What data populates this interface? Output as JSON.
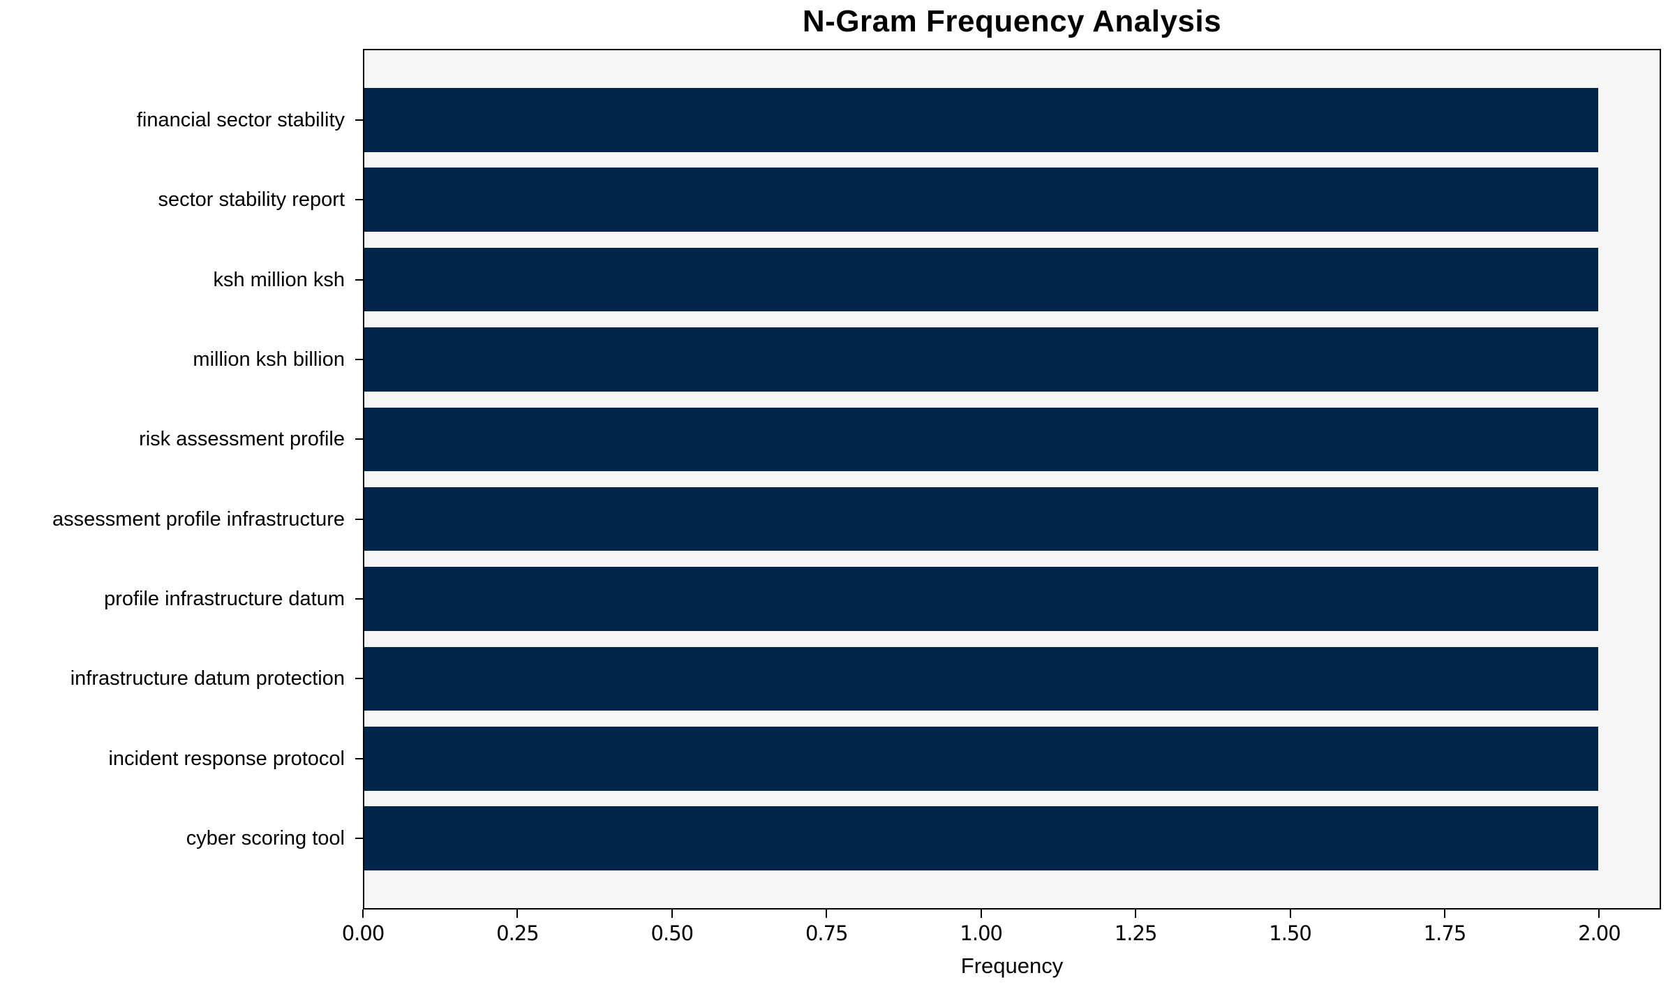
{
  "chart_data": {
    "type": "bar",
    "orientation": "horizontal",
    "title": "N-Gram Frequency Analysis",
    "categories": [
      "financial sector stability",
      "sector stability report",
      "ksh million ksh",
      "million ksh billion",
      "risk assessment profile",
      "assessment profile infrastructure",
      "profile infrastructure datum",
      "infrastructure datum protection",
      "incident response protocol",
      "cyber scoring tool"
    ],
    "values": [
      2,
      2,
      2,
      2,
      2,
      2,
      2,
      2,
      2,
      2
    ],
    "xlabel": "Frequency",
    "ylabel": "",
    "xlim": [
      0,
      2.1
    ],
    "xticks": [
      {
        "value": 0.0,
        "label": "0.00"
      },
      {
        "value": 0.25,
        "label": "0.25"
      },
      {
        "value": 0.5,
        "label": "0.50"
      },
      {
        "value": 0.75,
        "label": "0.75"
      },
      {
        "value": 1.0,
        "label": "1.00"
      },
      {
        "value": 1.25,
        "label": "1.25"
      },
      {
        "value": 1.5,
        "label": "1.50"
      },
      {
        "value": 1.75,
        "label": "1.75"
      },
      {
        "value": 2.0,
        "label": "2.00"
      }
    ],
    "grid": false,
    "legend": "none",
    "colors": {
      "bar": "#03254c",
      "plot_background": "#f6f6f7",
      "figure_background": "#ffffff",
      "axis": "#000000",
      "text": "#000000"
    }
  }
}
